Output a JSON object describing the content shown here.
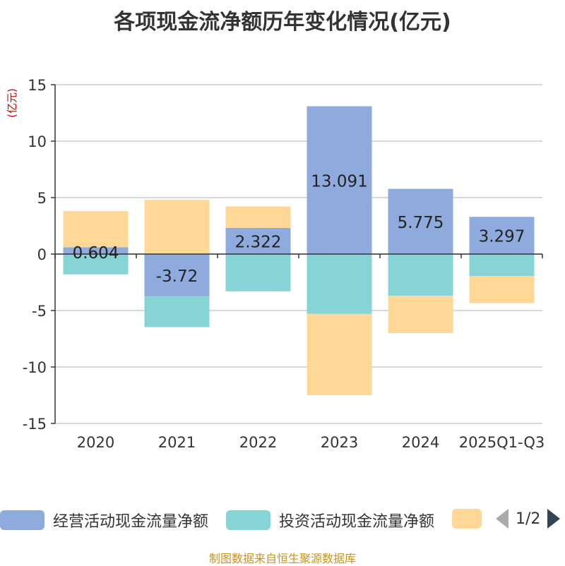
{
  "title": "各项现金流净额历年变化情况(亿元)",
  "source": "制图数据来自恒生聚源数据库",
  "legend_page": "1/2",
  "colors": {
    "operating": "#8faadc",
    "investing": "#86d4d6",
    "financing": "#ffd898",
    "grid": "#cccccc",
    "axis": "#333333"
  },
  "chart_data": {
    "type": "bar",
    "stacked": true,
    "unit_label": "(亿元)",
    "categories": [
      "2020",
      "2021",
      "2022",
      "2023",
      "2024",
      "2025Q1-Q3"
    ],
    "ylim": [
      -15,
      15
    ],
    "yticks": [
      15,
      10,
      5,
      0,
      -5,
      -10,
      -15
    ],
    "series": [
      {
        "name": "经营活动现金流量净额",
        "key": "operating",
        "values": [
          0.604,
          -3.72,
          2.322,
          13.091,
          5.775,
          3.297
        ],
        "labels": [
          "0.604",
          "-3.72",
          "2.322",
          "13.091",
          "5.775",
          "3.297"
        ]
      },
      {
        "name": "投资活动现金流量净额",
        "key": "investing",
        "values": [
          -1.8,
          -2.75,
          -3.3,
          -5.3,
          -3.7,
          -1.95
        ]
      },
      {
        "name": "",
        "key": "financing",
        "values": [
          3.2,
          4.8,
          1.9,
          -7.2,
          -3.3,
          -2.4
        ]
      }
    ]
  }
}
